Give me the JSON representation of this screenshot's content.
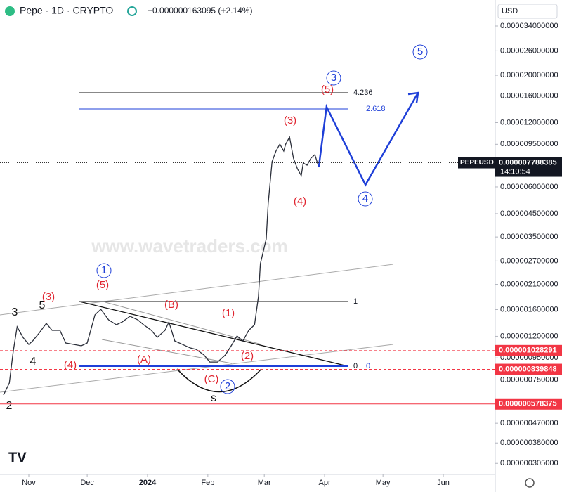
{
  "header": {
    "symbol": "Pepe · 1D · CRYPTO",
    "change": "+0.000000163095 (+2.14%)",
    "currency": "USD",
    "watermark": "www.wavetraders.com"
  },
  "chart_data": {
    "type": "line",
    "log": true,
    "x": [
      -13,
      -10,
      -8,
      -6,
      -3,
      0,
      2,
      5,
      9,
      12,
      16,
      19,
      23,
      27,
      30,
      34,
      37,
      41,
      45,
      48,
      52,
      56,
      59,
      63,
      66,
      70,
      72,
      75,
      79,
      83,
      86,
      90,
      93,
      97,
      101,
      104,
      107,
      110,
      113,
      116,
      118,
      119,
      122,
      123,
      125,
      127,
      129,
      131,
      132,
      134,
      136,
      138,
      140,
      141,
      143,
      145,
      147,
      149
    ],
    "series": [
      {
        "name": "PEPEUSD",
        "color": "#2a2e39",
        "values": [
          6.37e-07,
          7.25e-07,
          1.019e-06,
          1.329e-06,
          1.186e-06,
          1.099e-06,
          1.141e-06,
          1.232e-06,
          1.379e-06,
          1.279e-06,
          1.279e-06,
          1.116e-06,
          1.099e-06,
          1.083e-06,
          1.116e-06,
          1.511e-06,
          1.605e-06,
          1.433e-06,
          1.359e-06,
          1.4e-06,
          1.489e-06,
          1.433e-06,
          1.359e-06,
          1.279e-06,
          1.186e-06,
          1.279e-06,
          1.4e-06,
          1.141e-06,
          1.099e-06,
          1.058e-06,
          1.042e-06,
          9.81e-07,
          9.09e-07,
          9.09e-07,
          9.81e-07,
          1.083e-06,
          1.204e-06,
          1.141e-06,
          1.279e-06,
          1.359e-06,
          1.84e-06,
          2.625e-06,
          3.425e-06,
          5e-06,
          7.88e-06,
          8.83e-06,
          9.52e-06,
          8.83e-06,
          9.52e-06,
          1.027e-05,
          8.18e-06,
          7.31e-06,
          6.77e-06,
          7.76e-06,
          7.59e-06,
          8.18e-06,
          8.5e-06,
          7.42e-06
        ]
      }
    ],
    "projection": {
      "color": "#1e3fd8",
      "x": [
        149,
        153,
        173,
        200
      ],
      "values": [
        7.42e-06,
        1.423e-05,
        6.14e-06,
        1.655e-05
      ]
    },
    "xlim": [
      -14.8,
      239.7
    ],
    "xticks": [
      {
        "value": 0,
        "label": "Nov"
      },
      {
        "value": 30,
        "label": "Dec"
      },
      {
        "value": 61,
        "label": "2024"
      },
      {
        "value": 92,
        "label": "Feb"
      },
      {
        "value": 121,
        "label": "Mar"
      },
      {
        "value": 152,
        "label": "Apr"
      },
      {
        "value": 182,
        "label": "May"
      },
      {
        "value": 213,
        "label": "Jun"
      }
    ],
    "ylim": [
      2.707e-07,
      4.5e-05
    ],
    "yticks": [
      {
        "value": 3.4e-05,
        "label": "0.000034000000"
      },
      {
        "value": 2.6e-05,
        "label": "0.000026000000"
      },
      {
        "value": 2e-05,
        "label": "0.000020000000"
      },
      {
        "value": 1.6e-05,
        "label": "0.000016000000"
      },
      {
        "value": 1.2e-05,
        "label": "0.000012000000"
      },
      {
        "value": 9.5e-06,
        "label": "0.000009500000"
      },
      {
        "value": 6e-06,
        "label": "0.000006000000"
      },
      {
        "value": 4.5e-06,
        "label": "0.000004500000"
      },
      {
        "value": 3.5e-06,
        "label": "0.000003500000"
      },
      {
        "value": 2.7e-06,
        "label": "0.000002700000"
      },
      {
        "value": 2.1e-06,
        "label": "0.000002100000"
      },
      {
        "value": 1.6e-06,
        "label": "0.000001600000"
      },
      {
        "value": 1.2e-06,
        "label": "0.000001200000"
      },
      {
        "value": 9.5e-07,
        "label": "0.000000950000"
      },
      {
        "value": 7.5e-07,
        "label": "0.000000750000"
      },
      {
        "value": 4.7e-07,
        "label": "0.000000470000"
      },
      {
        "value": 3.8e-07,
        "label": "0.000000380000"
      },
      {
        "value": 3.05e-07,
        "label": "0.000000305000"
      }
    ],
    "price_tags": [
      {
        "value": 1.028291e-06,
        "label": "0.000001028291",
        "color": "#f23645"
      },
      {
        "value": 8.39848e-07,
        "label": "0.000000839848",
        "color": "#f23645"
      },
      {
        "value": 5.78375e-07,
        "label": "0.000000578375",
        "color": "#f23645"
      }
    ],
    "last": {
      "value": 7.788385e-06,
      "label": "0.000007788385",
      "timer": "14:10:54"
    },
    "fib_labels": [
      4.236,
      2.618,
      1,
      0,
      0
    ],
    "wave_labels": [
      "3",
      "5",
      "4",
      "2",
      "s",
      "(3)",
      "(5)",
      "(4)",
      "(B)",
      "(A)",
      "(1)",
      "(2)",
      "(C)",
      "(3)",
      "(4)",
      "(5)",
      "1",
      "2",
      "3",
      "4",
      "5"
    ]
  }
}
